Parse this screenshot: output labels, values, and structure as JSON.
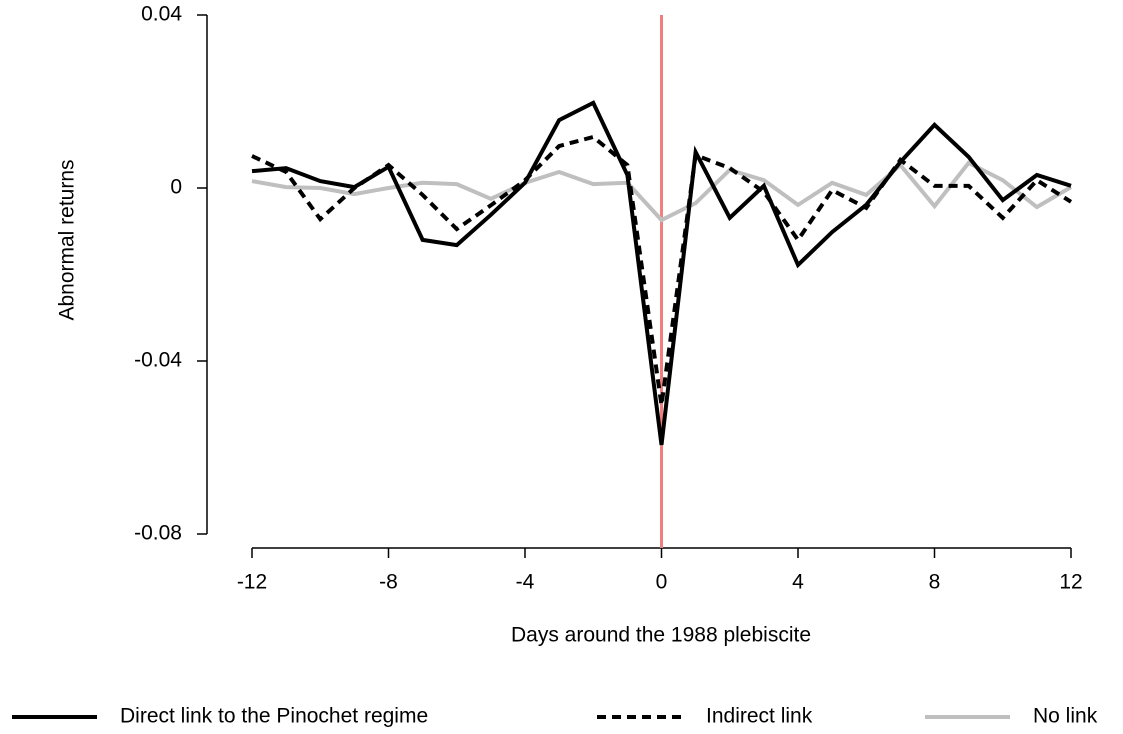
{
  "chart_data": {
    "type": "line",
    "x_label": "Days around the 1988 plebiscite",
    "y_label": "Abnormal returns",
    "x": [
      -12,
      -11,
      -10,
      -9,
      -8,
      -7,
      -6,
      -5,
      -4,
      -3,
      -2,
      -1,
      0,
      1,
      2,
      3,
      4,
      5,
      6,
      7,
      8,
      9,
      10,
      11,
      12
    ],
    "series": [
      {
        "name": "Direct link to the Pinochet regime",
        "color": "#000000",
        "dash": "solid",
        "values": [
          0.0039,
          0.0046,
          0.0016,
          0.0002,
          0.0049,
          -0.012,
          -0.0132,
          -0.0062,
          0.0012,
          0.0157,
          0.0197,
          0.003,
          -0.0594,
          0.0083,
          -0.0069,
          0.0005,
          -0.0178,
          -0.0102,
          -0.0039,
          0.006,
          0.0146,
          0.0072,
          -0.0028,
          0.003,
          0.0005
        ]
      },
      {
        "name": "Indirect link",
        "color": "#000000",
        "dash": "dashed",
        "values": [
          0.0074,
          0.0037,
          -0.0072,
          0,
          0.0053,
          -0.0016,
          -0.0095,
          -0.004,
          0.0018,
          0.0097,
          0.0118,
          0.0053,
          -0.0502,
          0.0076,
          0.0046,
          -0.0009,
          -0.012,
          -0.0005,
          -0.0046,
          0.0065,
          0.0005,
          0.0005,
          -0.0069,
          0.0018,
          -0.0032
        ]
      },
      {
        "name": "No link",
        "color": "#bfbfbf",
        "dash": "solid",
        "values": [
          0.0016,
          0.0002,
          0,
          -0.0014,
          0,
          0.0012,
          0.0009,
          -0.0025,
          0.0012,
          0.0037,
          0.0009,
          0.0012,
          -0.0074,
          -0.0035,
          0.0042,
          0.0018,
          -0.0039,
          0.0012,
          -0.0016,
          0.0053,
          -0.0042,
          0.0058,
          0.0018,
          -0.0044,
          0.0002
        ]
      }
    ],
    "xlim": [
      -12,
      12
    ],
    "xticks": [
      -12,
      -8,
      -4,
      0,
      4,
      8,
      12
    ],
    "ylim": [
      -0.08,
      0.04
    ],
    "yticks": [
      -0.08,
      -0.04,
      0,
      0.04
    ],
    "vline": 0,
    "vline_color": "#f08080",
    "legend": "bottom"
  }
}
